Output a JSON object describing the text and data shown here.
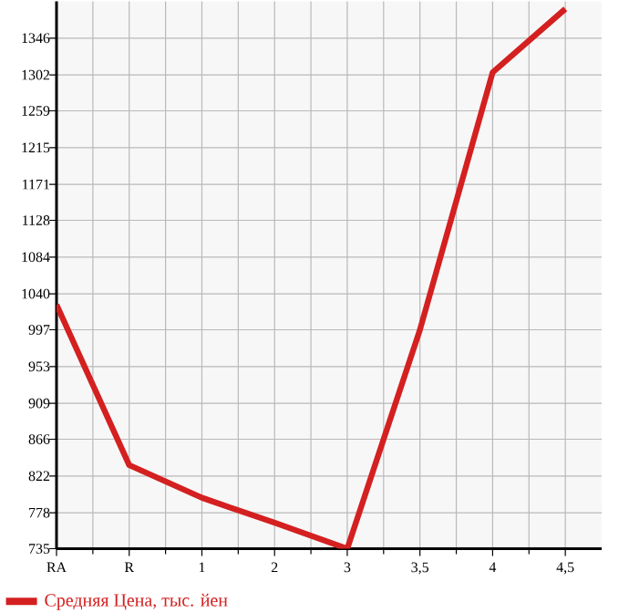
{
  "chart_data": {
    "type": "line",
    "categories": [
      "RA",
      "R",
      "1",
      "2",
      "3",
      "3,5",
      "4",
      "4,5"
    ],
    "series": [
      {
        "name": "Средняя Цена, тыс. йен",
        "color": "#d42020",
        "values": [
          1027,
          835,
          796,
          766,
          735,
          997,
          1305,
          1381
        ]
      }
    ],
    "ylim": [
      735,
      1390
    ],
    "yticks": [
      735,
      778,
      822,
      866,
      909,
      953,
      997,
      1040,
      1084,
      1128,
      1171,
      1215,
      1259,
      1302,
      1346
    ],
    "grid": true,
    "legend": "bottom left"
  }
}
